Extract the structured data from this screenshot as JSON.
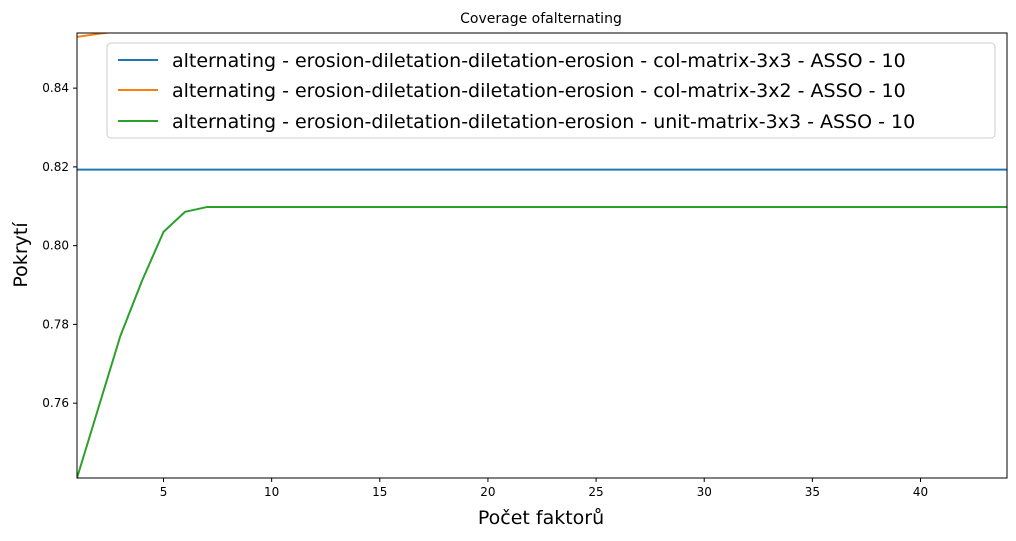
{
  "chart_data": {
    "type": "line",
    "title": "Coverage ofalternating",
    "xlabel": "Počet faktorů",
    "ylabel": "Pokrytí",
    "xlim": [
      1,
      44
    ],
    "ylim": [
      0.741,
      0.854
    ],
    "xticks": [
      5,
      10,
      15,
      20,
      25,
      30,
      35,
      40
    ],
    "yticks": [
      0.76,
      0.78,
      0.8,
      0.82,
      0.84
    ],
    "ytick_labels": [
      "0.76",
      "0.78",
      "0.80",
      "0.82",
      "0.84"
    ],
    "grid": false,
    "legend_position": "top-right",
    "series": [
      {
        "name": "alternating - erosion-diletation-diletation-erosion - col-matrix-3x3 - ASSO - 10",
        "color": "#1f77b4",
        "x": [
          1,
          44
        ],
        "y": [
          0.8193,
          0.8193
        ]
      },
      {
        "name": "alternating - erosion-diletation-diletation-erosion - col-matrix-3x2 - ASSO - 10",
        "color": "#ff7f0e",
        "x": [
          1,
          2,
          3,
          44
        ],
        "y": [
          0.853,
          0.8538,
          0.8545,
          0.8545
        ]
      },
      {
        "name": "alternating - erosion-diletation-diletation-erosion - unit-matrix-3x3 - ASSO - 10",
        "color": "#2ca02c",
        "x": [
          1,
          2,
          3,
          4,
          5,
          6,
          7,
          8,
          9,
          10,
          15,
          20,
          25,
          30,
          35,
          40,
          44
        ],
        "y": [
          0.741,
          0.759,
          0.777,
          0.791,
          0.8035,
          0.8086,
          0.8098,
          0.8098,
          0.8098,
          0.8098,
          0.8098,
          0.8098,
          0.8098,
          0.8098,
          0.8098,
          0.8098,
          0.8098
        ]
      }
    ]
  }
}
